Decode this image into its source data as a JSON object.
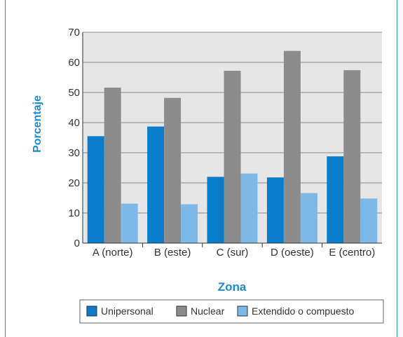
{
  "chart_data": {
    "type": "bar",
    "title": "",
    "xlabel": "Zona",
    "ylabel": "Porcentaje",
    "ylim": [
      0,
      70
    ],
    "yticks": [
      0,
      10,
      20,
      30,
      40,
      50,
      60,
      70
    ],
    "grid": true,
    "legend_position": "bottom",
    "categories": [
      "A (norte)",
      "B (este)",
      "C (sur)",
      "D (oeste)",
      "E (centro)"
    ],
    "series": [
      {
        "name": "Unipersonal",
        "color": "#0a7ccc",
        "values": [
          35.5,
          38.7,
          22.0,
          21.8,
          28.8
        ]
      },
      {
        "name": "Nuclear",
        "color": "#8c8c8c",
        "values": [
          51.6,
          48.2,
          57.2,
          63.8,
          57.4
        ]
      },
      {
        "name": "Extendido o compuesto",
        "color": "#7cb9e8",
        "values": [
          13.1,
          12.9,
          23.1,
          16.6,
          14.8
        ]
      }
    ]
  }
}
